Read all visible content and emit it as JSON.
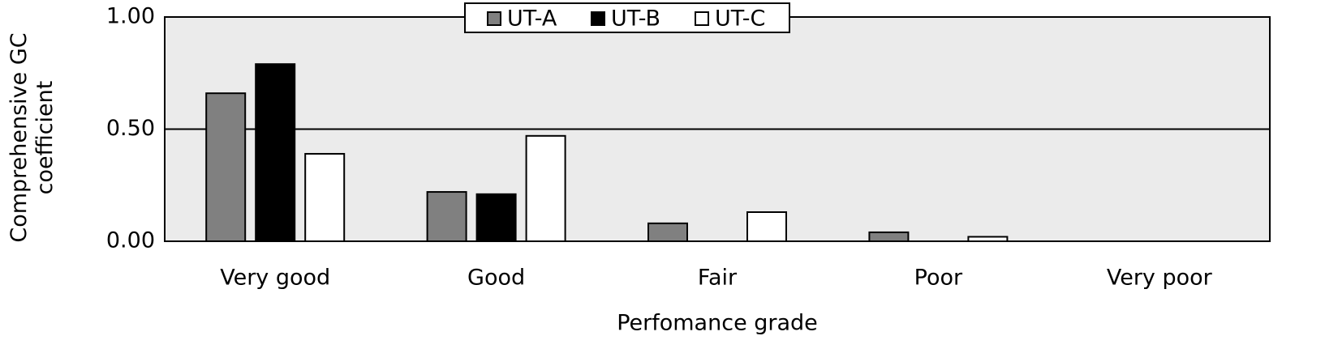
{
  "chart_data": {
    "type": "bar",
    "x_label": "Perfomance grade",
    "y_label": "Comprehensive GC coefficient",
    "categories": [
      "Very good",
      "Good",
      "Fair",
      "Poor",
      "Very poor"
    ],
    "series": [
      {
        "name": "UT-A",
        "color": "#808080",
        "values": [
          0.66,
          0.22,
          0.08,
          0.04,
          0
        ]
      },
      {
        "name": "UT-B",
        "color": "#000000",
        "values": [
          0.79,
          0.21,
          0,
          0,
          0
        ]
      },
      {
        "name": "UT-C",
        "color": "#ffffff",
        "values": [
          0.39,
          0.47,
          0.13,
          0.02,
          0
        ]
      }
    ],
    "ylim": [
      0,
      1
    ],
    "yticks": [
      {
        "value": 0,
        "label": "0.00"
      },
      {
        "value": 0.5,
        "label": "0.50"
      },
      {
        "value": 1,
        "label": "1.00"
      }
    ],
    "grid": true,
    "legend": "top"
  }
}
